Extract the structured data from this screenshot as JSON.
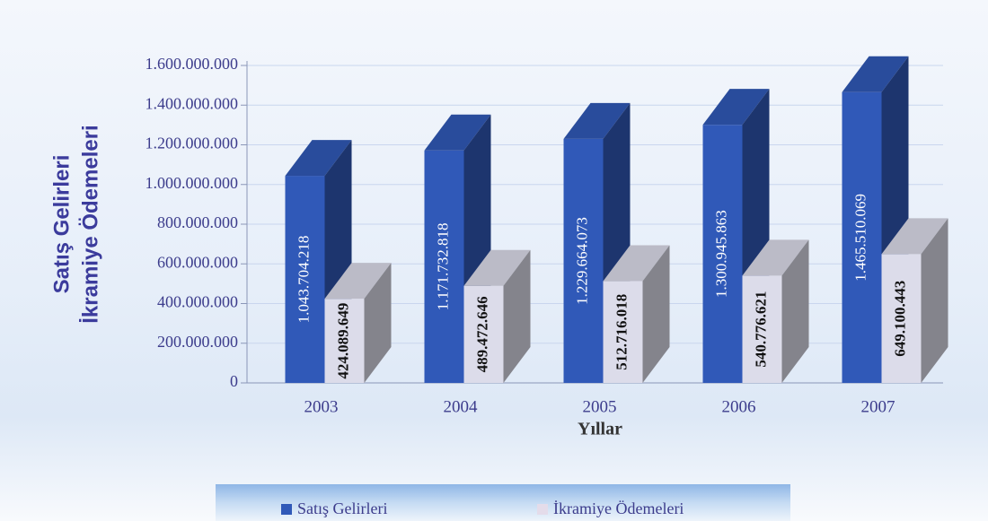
{
  "chart_data": {
    "type": "bar3d",
    "categories": [
      "2003",
      "2004",
      "2005",
      "2006",
      "2007"
    ],
    "series": [
      {
        "name": "Satış Gelirleri",
        "color": "#3059b8",
        "values": [
          1043704218,
          1171732818,
          1229664073,
          1300945863,
          1465510069
        ],
        "value_labels": [
          "1.043.704.218",
          "1.171.732.818",
          "1.229.664.073",
          "1.300.945.863",
          "1.465.510.069"
        ]
      },
      {
        "name": "İkramiye Ödemeleri",
        "color": "#dcdcea",
        "values": [
          424089649,
          489472646,
          512716018,
          540776621,
          649100443
        ],
        "value_labels": [
          "424.089.649",
          "489.472.646",
          "512.716.018",
          "540.776.621",
          "649.100.443"
        ]
      }
    ],
    "ylim": [
      0,
      1600000000
    ],
    "yticks": [
      0,
      {
        "value": 200000000,
        "label": "200.000.000"
      },
      {
        "value": 400000000,
        "label": "400.000.000"
      },
      {
        "value": 600000000,
        "label": "600.000.000"
      },
      {
        "value": 800000000,
        "label": "800.000.000"
      },
      {
        "value": 1000000000,
        "label": "1.000.000.000"
      },
      {
        "value": 1200000000,
        "label": "1.200.000.000"
      },
      {
        "value": 1400000000,
        "label": "1.400.000.000"
      },
      {
        "value": 1600000000,
        "label": "1.600.000.000"
      }
    ],
    "ylabel_lines": [
      "Satış Gelirleri",
      "İkramiye Ödemeleri"
    ],
    "xlabel": "Yıllar",
    "grid": true,
    "legend": "bottom"
  }
}
